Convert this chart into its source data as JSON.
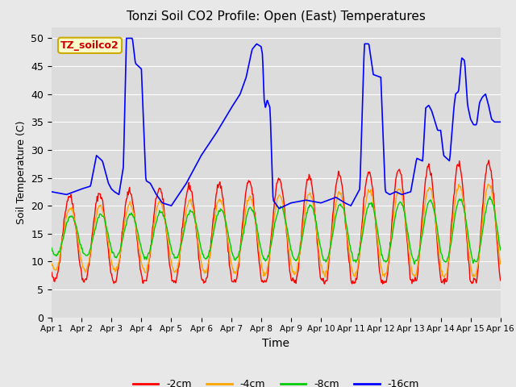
{
  "title": "Tonzi Soil CO2 Profile: Open (East) Temperatures",
  "xlabel": "Time",
  "ylabel": "Soil Temperature (C)",
  "ylim": [
    0,
    52
  ],
  "yticks": [
    0,
    5,
    10,
    15,
    20,
    25,
    30,
    35,
    40,
    45,
    50
  ],
  "colors": {
    "-2cm": "#ff0000",
    "-4cm": "#ffa500",
    "-8cm": "#00cc00",
    "-16cm": "#0000ff"
  },
  "legend_label": "TZ_soilco2",
  "legend_box_facecolor": "#ffffcc",
  "legend_box_edgecolor": "#ccaa00",
  "fig_facecolor": "#e8e8e8",
  "ax_facecolor": "#dcdcdc",
  "grid_color": "#ffffff",
  "n_days": 15,
  "pts_per_day": 48
}
